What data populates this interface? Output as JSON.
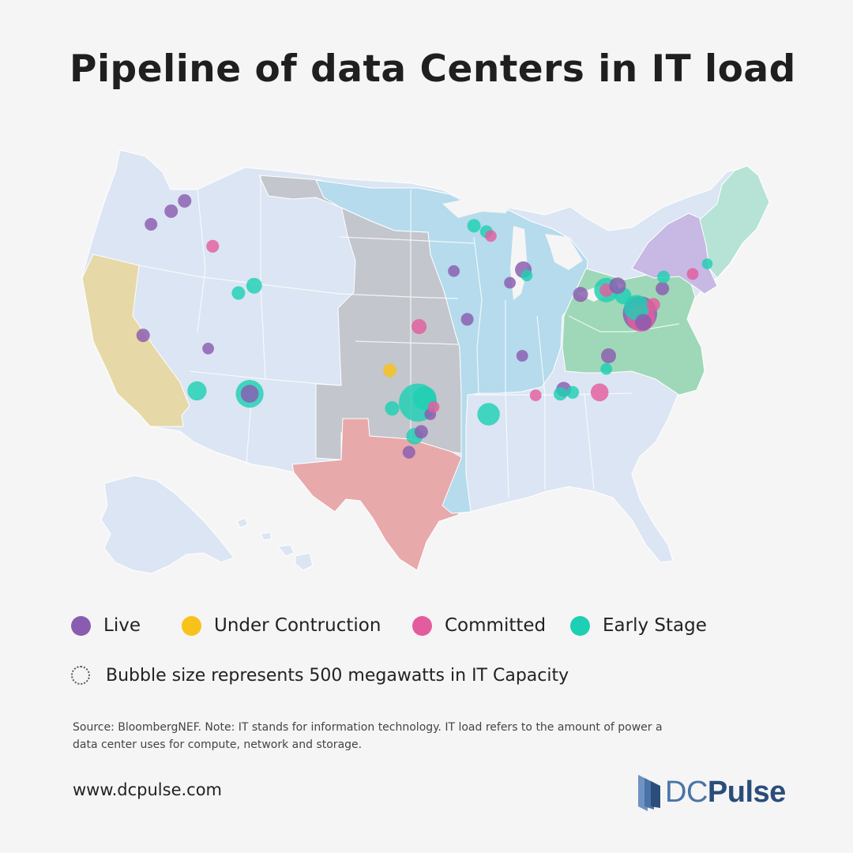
{
  "title": "Pipeline of data Centers in IT load",
  "legend": {
    "items": [
      {
        "label": "Live",
        "color": "#8a5cb0",
        "icon": "live-dot"
      },
      {
        "label": "Under Contruction",
        "color": "#f8c21a",
        "icon": "under-construction-dot"
      },
      {
        "label": "Committed",
        "color": "#e35d9e",
        "icon": "committed-dot"
      },
      {
        "label": "Early Stage",
        "color": "#1ecfb3",
        "icon": "early-stage-dot"
      }
    ],
    "size_note": "Bubble size represents 500 megawatts in IT Capacity"
  },
  "source": "Source: BloombergNEF. Note: IT stands for information technology. IT load refers to the amount of power a data center uses for compute, network and storage.",
  "website": "www.dcpulse.com",
  "brand": {
    "prefix": "DC",
    "name": "Pulse",
    "icon": "dcpulse-logo-icon"
  },
  "map": {
    "region_colors": {
      "base": "#dbe5f3",
      "california": "#e6d9a7",
      "texas": "#e8a9ab",
      "plains": "#c3c6cc",
      "midwest": "#b5dbed",
      "east": "#9fd8b8",
      "new_york": "#c7b8e4",
      "new_england": "#b6e3d5"
    },
    "bubbles": [
      {
        "stage": "early",
        "lon": -97.3,
        "lat": 32.8,
        "mw": 320
      },
      {
        "stage": "early",
        "lon": -96.7,
        "lat": 33.1,
        "mw": 120
      },
      {
        "stage": "early",
        "lon": -91.0,
        "lat": 32.0,
        "mw": 110
      },
      {
        "stage": "early",
        "lon": -112.3,
        "lat": 33.4,
        "mw": 170
      },
      {
        "stage": "live",
        "lon": -112.3,
        "lat": 33.4,
        "mw": 70
      },
      {
        "stage": "early",
        "lon": -117.0,
        "lat": 33.6,
        "mw": 80
      },
      {
        "stage": "live",
        "lon": -77.5,
        "lat": 38.9,
        "mw": 260
      },
      {
        "stage": "committed",
        "lon": -77.4,
        "lat": 38.6,
        "mw": 170
      },
      {
        "stage": "early",
        "lon": -77.8,
        "lat": 39.3,
        "mw": 140
      },
      {
        "stage": "live",
        "lon": -77.2,
        "lat": 38.3,
        "mw": 60
      },
      {
        "stage": "early",
        "lon": -80.5,
        "lat": 40.5,
        "mw": 130
      },
      {
        "stage": "committed",
        "lon": -80.5,
        "lat": 40.5,
        "mw": 40
      },
      {
        "stage": "early",
        "lon": -79.0,
        "lat": 40.1,
        "mw": 60
      },
      {
        "stage": "live",
        "lon": -82.8,
        "lat": 40.2,
        "mw": 50
      },
      {
        "stage": "live",
        "lon": -79.5,
        "lat": 40.8,
        "mw": 60
      },
      {
        "stage": "live",
        "lon": -75.5,
        "lat": 40.6,
        "mw": 40
      },
      {
        "stage": "early",
        "lon": -75.4,
        "lat": 41.4,
        "mw": 35
      },
      {
        "stage": "committed",
        "lon": -76.3,
        "lat": 39.5,
        "mw": 40
      },
      {
        "stage": "live",
        "lon": -87.9,
        "lat": 41.9,
        "mw": 60
      },
      {
        "stage": "early",
        "lon": -87.6,
        "lat": 41.5,
        "mw": 30
      },
      {
        "stage": "live",
        "lon": -89.1,
        "lat": 41.0,
        "mw": 30
      },
      {
        "stage": "live",
        "lon": -84.3,
        "lat": 33.7,
        "mw": 50
      },
      {
        "stage": "early",
        "lon": -84.6,
        "lat": 33.4,
        "mw": 40
      },
      {
        "stage": "early",
        "lon": -83.5,
        "lat": 33.5,
        "mw": 35
      },
      {
        "stage": "committed",
        "lon": -81.1,
        "lat": 33.5,
        "mw": 70
      },
      {
        "stage": "live",
        "lon": -80.3,
        "lat": 36.0,
        "mw": 50
      },
      {
        "stage": "early",
        "lon": -80.5,
        "lat": 35.1,
        "mw": 30
      },
      {
        "stage": "early",
        "lon": -97.6,
        "lat": 30.5,
        "mw": 60
      },
      {
        "stage": "live",
        "lon": -97.0,
        "lat": 30.8,
        "mw": 40
      },
      {
        "stage": "early",
        "lon": -99.6,
        "lat": 32.4,
        "mw": 45
      },
      {
        "stage": "under_construction",
        "lon": -99.8,
        "lat": 35.0,
        "mw": 40
      },
      {
        "stage": "live",
        "lon": -98.1,
        "lat": 29.4,
        "mw": 35
      },
      {
        "stage": "live",
        "lon": -96.2,
        "lat": 32.0,
        "mw": 30
      },
      {
        "stage": "committed",
        "lon": -95.9,
        "lat": 32.5,
        "mw": 30
      },
      {
        "stage": "committed",
        "lon": -97.2,
        "lat": 38.0,
        "mw": 50
      },
      {
        "stage": "live",
        "lon": -92.9,
        "lat": 38.5,
        "mw": 35
      },
      {
        "stage": "live",
        "lon": -116.0,
        "lat": 36.5,
        "mw": 30
      },
      {
        "stage": "early",
        "lon": -111.9,
        "lat": 40.8,
        "mw": 55
      },
      {
        "stage": "early",
        "lon": -113.3,
        "lat": 40.3,
        "mw": 40
      },
      {
        "stage": "live",
        "lon": -121.8,
        "lat": 37.4,
        "mw": 40
      },
      {
        "stage": "live",
        "lon": -119.3,
        "lat": 45.9,
        "mw": 40
      },
      {
        "stage": "live",
        "lon": -121.1,
        "lat": 45.0,
        "mw": 35
      },
      {
        "stage": "live",
        "lon": -118.1,
        "lat": 46.6,
        "mw": 40
      },
      {
        "stage": "committed",
        "lon": -115.6,
        "lat": 43.5,
        "mw": 35
      },
      {
        "stage": "early",
        "lon": -92.3,
        "lat": 44.9,
        "mw": 40
      },
      {
        "stage": "early",
        "lon": -91.2,
        "lat": 44.5,
        "mw": 35
      },
      {
        "stage": "committed",
        "lon": -90.8,
        "lat": 44.2,
        "mw": 30
      },
      {
        "stage": "committed",
        "lon": -86.8,
        "lat": 33.3,
        "mw": 30
      },
      {
        "stage": "live",
        "lon": -88.0,
        "lat": 36.0,
        "mw": 30
      },
      {
        "stage": "committed",
        "lon": -72.8,
        "lat": 41.6,
        "mw": 30
      },
      {
        "stage": "early",
        "lon": -71.5,
        "lat": 42.3,
        "mw": 25
      },
      {
        "stage": "live",
        "lon": -94.1,
        "lat": 41.8,
        "mw": 30
      }
    ]
  }
}
